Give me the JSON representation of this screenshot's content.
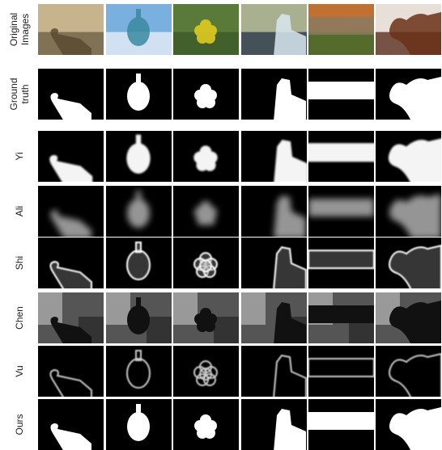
{
  "rows": [
    {
      "label": [
        "Original",
        "Images"
      ]
    },
    {
      "label": [
        "Ground",
        "truth"
      ]
    },
    {
      "label": [
        "Yi"
      ]
    },
    {
      "label": [
        "Ali"
      ]
    },
    {
      "label": [
        "Shi"
      ]
    },
    {
      "label": [
        "Chen"
      ]
    },
    {
      "label": [
        "Vu"
      ]
    },
    {
      "label": [
        "Ours"
      ]
    }
  ]
}
